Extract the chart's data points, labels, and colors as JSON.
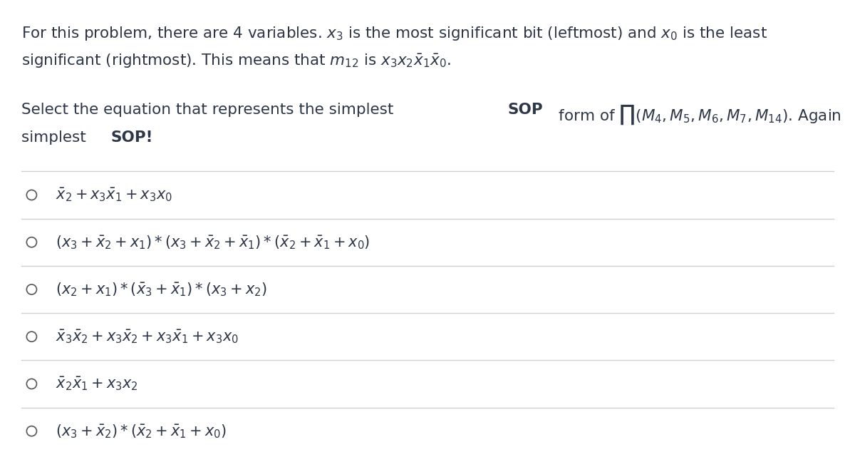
{
  "bg_color": "#ffffff",
  "text_color": "#2d3748",
  "figsize": [
    12.0,
    6.41
  ],
  "dpi": 100,
  "line_color": "#d0d0d0",
  "font_size_body": 15.5,
  "font_size_options": 15.0,
  "circle_color": "#555555",
  "options": [
    "$\\bar{x}_2 + x_3\\bar{x}_1 + x_3 x_0$",
    "$(x_3 + \\bar{x}_2 + x_1) * (x_3 + \\bar{x}_2 + \\bar{x}_1) * (\\bar{x}_2 + \\bar{x}_1 + x_0)$",
    "$(x_2 + x_1) * (\\bar{x}_3 + \\bar{x}_1) * (x_3 + x_2)$",
    "$\\bar{x}_3\\bar{x}_2 + x_3\\bar{x}_2 + x_3\\bar{x}_1 + x_3 x_0$",
    "$\\bar{x}_2\\bar{x}_1 + x_3 x_2$",
    "$(x_3 + \\bar{x}_2) * (\\bar{x}_2 + \\bar{x}_1 + x_0)$"
  ],
  "p1_line1": "For this problem, there are 4 variables. $x_3$ is the most significant bit (leftmost) and $x_0$ is the least",
  "p1_line2": "significant (rightmost). This means that $m_{12}$ is $x_3 x_2 \\bar{x}_1 \\bar{x}_0$.",
  "p2_pre": "Select the equation that represents the simplest ",
  "p2_bold": "SOP",
  "p2_post": " form of $\\prod(M_4, M_5, M_6, M_7, M_{14})$. Again",
  "p3_pre": "simplest ",
  "p3_bold": "SOP!"
}
